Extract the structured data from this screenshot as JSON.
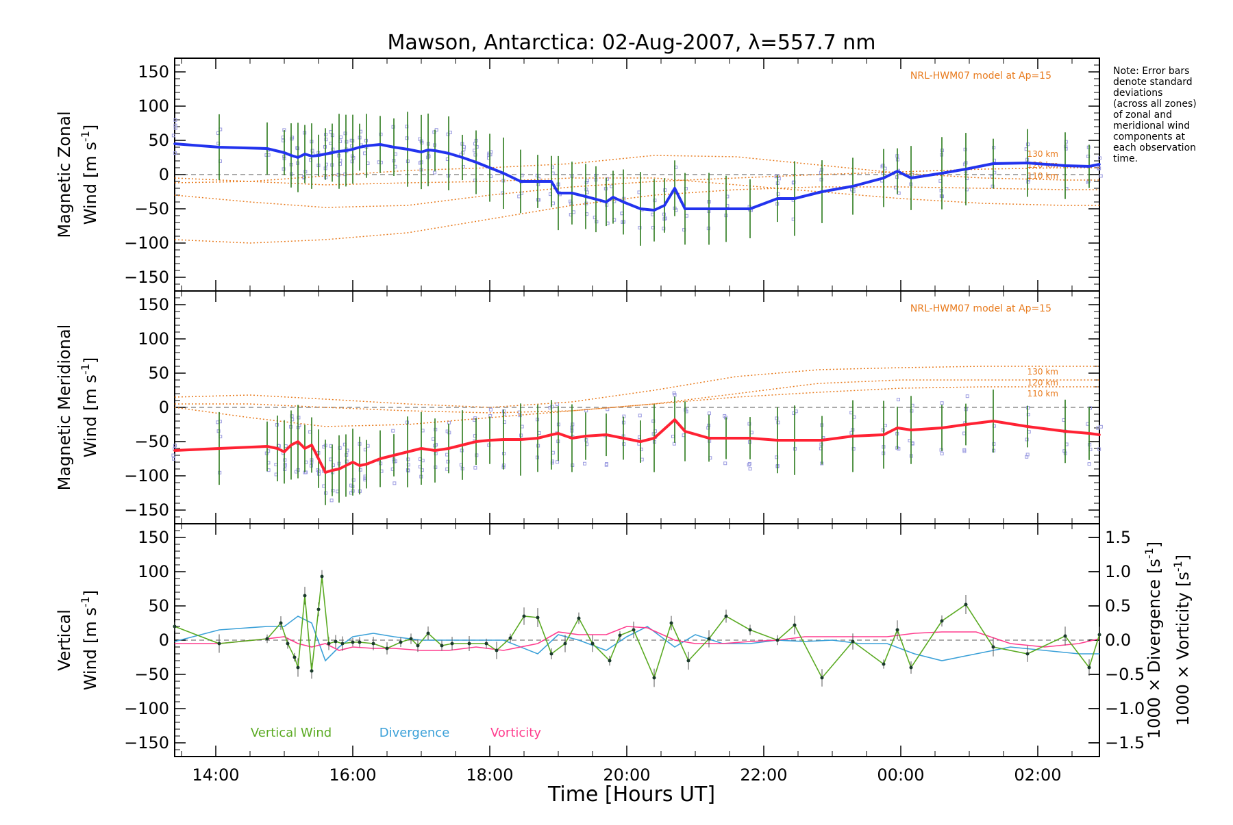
{
  "chart_data": {
    "type": "line",
    "title": "Mawson, Antarctica: 02-Aug-2007, λ=557.7 nm",
    "xlabel": "Time [Hours UT]",
    "x_tick_labels": [
      "14:00",
      "16:00",
      "18:00",
      "20:00",
      "22:00",
      "00:00",
      "02:00"
    ],
    "x_tick_hours": [
      14,
      16,
      18,
      20,
      22,
      24,
      26
    ],
    "xlim": [
      13.4,
      26.9
    ],
    "note": [
      "Note: Error bars",
      "denote standard",
      "deviations",
      "(across all zones)",
      "of zonal and",
      "meridional wind",
      "components at",
      "each observation",
      "time."
    ],
    "colors": {
      "zonal": "#2233ee",
      "meridional": "#ff2233",
      "vertical": "#5aaa22",
      "divergence": "#3aa0d8",
      "vorticity": "#ff3b8d",
      "model": "#e87a1c",
      "points": "#9a9ae0"
    },
    "panels": [
      {
        "name": "zonal",
        "ylabel_top": "Magnetic Zonal",
        "ylabel_bottom_prefix": "Wind",
        "ylabel_unit": "[m s",
        "ylabel_exp": "-1",
        "ylabel_close": "]",
        "ylim": [
          -170,
          170
        ],
        "yticks": [
          "150",
          "100",
          "50",
          "0",
          "−50",
          "−100",
          "−150"
        ],
        "ytick_values": [
          150,
          100,
          50,
          0,
          -50,
          -100,
          -150
        ],
        "model_label": "NRL-HWM07 model at Ap=15",
        "altitude_labels": [
          "130 km",
          "120 km",
          "110 km"
        ],
        "series": [
          {
            "name": "Magnetic Zonal Wind",
            "x": [
              13.4,
              14.05,
              14.75,
              15.0,
              15.1,
              15.2,
              15.3,
              15.4,
              15.5,
              15.6,
              15.7,
              15.8,
              15.9,
              16.0,
              16.1,
              16.2,
              16.4,
              16.6,
              16.8,
              17.0,
              17.1,
              17.2,
              17.4,
              17.6,
              17.8,
              18.0,
              18.2,
              18.45,
              18.7,
              18.9,
              19.0,
              19.2,
              19.4,
              19.55,
              19.7,
              19.8,
              19.95,
              20.2,
              20.4,
              20.55,
              20.7,
              20.85,
              21.2,
              21.45,
              21.8,
              22.2,
              22.45,
              22.85,
              23.3,
              23.75,
              23.95,
              24.15,
              24.6,
              24.95,
              25.35,
              25.85,
              26.4,
              26.75,
              26.9
            ],
            "y": [
              45,
              40,
              38,
              32,
              28,
              25,
              30,
              27,
              28,
              30,
              32,
              34,
              35,
              37,
              40,
              42,
              44,
              40,
              37,
              33,
              36,
              35,
              31,
              25,
              18,
              10,
              2,
              -10,
              -10,
              -10,
              -27,
              -27,
              -32,
              -36,
              -40,
              -33,
              -40,
              -50,
              -52,
              -45,
              -20,
              -50,
              -50,
              -50,
              -50,
              -35,
              -35,
              -25,
              -17,
              -5,
              5,
              -5,
              2,
              8,
              16,
              17,
              13,
              12,
              15
            ]
          }
        ]
      },
      {
        "name": "meridional",
        "ylabel_top": "Magnetic Meridional",
        "ylabel_bottom_prefix": "Wind",
        "ylabel_unit": "[m s",
        "ylabel_exp": "-1",
        "ylabel_close": "]",
        "ylim": [
          -170,
          170
        ],
        "yticks": [
          "150",
          "100",
          "50",
          "0",
          "−50",
          "−100",
          "−150"
        ],
        "ytick_values": [
          150,
          100,
          50,
          0,
          -50,
          -100,
          -150
        ],
        "model_label": "NRL-HWM07 model at Ap=15",
        "altitude_labels": [
          "130 km",
          "120 km",
          "110 km"
        ],
        "series": [
          {
            "name": "Magnetic Meridional Wind",
            "x": [
              13.4,
              14.05,
              14.75,
              14.9,
              15.0,
              15.1,
              15.2,
              15.3,
              15.4,
              15.5,
              15.6,
              15.7,
              15.8,
              15.9,
              16.0,
              16.1,
              16.2,
              16.4,
              16.6,
              16.8,
              17.0,
              17.2,
              17.4,
              17.6,
              17.8,
              18.0,
              18.2,
              18.45,
              18.7,
              18.9,
              19.0,
              19.2,
              19.4,
              19.7,
              19.95,
              20.2,
              20.4,
              20.7,
              20.85,
              21.2,
              21.45,
              21.8,
              22.2,
              22.45,
              22.85,
              23.3,
              23.75,
              23.95,
              24.15,
              24.6,
              24.95,
              25.35,
              25.85,
              26.4,
              26.75,
              26.9
            ],
            "y": [
              -63,
              -60,
              -57,
              -60,
              -65,
              -55,
              -50,
              -60,
              -55,
              -75,
              -95,
              -92,
              -90,
              -85,
              -80,
              -85,
              -83,
              -75,
              -70,
              -65,
              -60,
              -63,
              -60,
              -55,
              -50,
              -48,
              -47,
              -47,
              -45,
              -40,
              -38,
              -45,
              -42,
              -40,
              -45,
              -50,
              -45,
              -18,
              -35,
              -45,
              -45,
              -45,
              -48,
              -48,
              -48,
              -42,
              -40,
              -30,
              -33,
              -30,
              -25,
              -20,
              -28,
              -35,
              -38,
              -40
            ]
          }
        ]
      },
      {
        "name": "vertical",
        "ylabel_top": "Vertical",
        "ylabel_bottom_prefix": "Wind",
        "ylabel_unit": "[m s",
        "ylabel_exp": "-1",
        "ylabel_close": "]",
        "ylim": [
          -170,
          170
        ],
        "yticks": [
          "150",
          "100",
          "50",
          "0",
          "−50",
          "−100",
          "−150"
        ],
        "ytick_values": [
          150,
          100,
          50,
          0,
          -50,
          -100,
          -150
        ],
        "right_ylim": [
          -1.7,
          1.7
        ],
        "right_yticks": [
          "1.5",
          "1.0",
          "0.5",
          "0.0",
          "−0.5",
          "−1.0",
          "−1.5"
        ],
        "right_ytick_values": [
          1.5,
          1.0,
          0.5,
          0.0,
          -0.5,
          -1.0,
          -1.5
        ],
        "right_ylabel_div_text": "1000 × Divergence",
        "right_ylabel_vort_text": "1000 × Vorticity",
        "right_ylabel_unit": "[s",
        "right_ylabel_exp": "-1",
        "right_ylabel_close": "]",
        "legend": [
          "Vertical Wind",
          "Divergence",
          "Vorticity"
        ],
        "series": [
          {
            "name": "Vertical Wind",
            "x": [
              13.4,
              14.05,
              14.75,
              14.95,
              15.05,
              15.15,
              15.2,
              15.3,
              15.4,
              15.5,
              15.55,
              15.65,
              15.75,
              15.85,
              16.0,
              16.1,
              16.3,
              16.5,
              16.7,
              16.85,
              16.95,
              17.1,
              17.3,
              17.45,
              17.7,
              17.95,
              18.1,
              18.3,
              18.5,
              18.7,
              18.9,
              19.1,
              19.3,
              19.5,
              19.75,
              19.9,
              20.1,
              20.4,
              20.65,
              20.9,
              21.2,
              21.45,
              21.8,
              22.2,
              22.45,
              22.85,
              23.3,
              23.75,
              23.95,
              24.15,
              24.6,
              24.95,
              25.35,
              25.85,
              26.4,
              26.75,
              26.9
            ],
            "y": [
              20,
              -5,
              2,
              25,
              -5,
              -25,
              -40,
              65,
              -45,
              45,
              93,
              -5,
              -2,
              -5,
              -3,
              -3,
              -5,
              -12,
              -3,
              2,
              -8,
              10,
              -8,
              -5,
              -5,
              -5,
              -15,
              3,
              35,
              33,
              -20,
              -5,
              32,
              -5,
              -30,
              7,
              15,
              -55,
              25,
              -30,
              2,
              35,
              15,
              0,
              22,
              -55,
              -2,
              -35,
              15,
              -40,
              28,
              52,
              -10,
              -20,
              6,
              -40,
              8
            ]
          },
          {
            "name": "Divergence",
            "x": [
              13.4,
              14.05,
              14.75,
              15.0,
              15.2,
              15.4,
              15.6,
              15.8,
              16.0,
              16.3,
              16.6,
              17.0,
              17.4,
              17.8,
              18.2,
              18.7,
              19.0,
              19.3,
              19.7,
              20.0,
              20.3,
              20.7,
              21.0,
              21.4,
              21.8,
              22.2,
              22.6,
              23.0,
              23.4,
              23.8,
              24.2,
              24.6,
              25.1,
              25.6,
              26.1,
              26.6,
              26.9
            ],
            "y": [
              -0.02,
              0.15,
              0.2,
              0.2,
              0.35,
              0.25,
              -0.3,
              -0.1,
              0.05,
              0.1,
              0.05,
              0.0,
              0.0,
              0.0,
              0.0,
              -0.2,
              0.08,
              0.0,
              -0.15,
              0.05,
              0.2,
              -0.1,
              0.08,
              -0.05,
              -0.05,
              0.0,
              -0.02,
              0.0,
              -0.05,
              -0.05,
              -0.2,
              -0.3,
              -0.2,
              -0.1,
              -0.15,
              -0.2,
              -0.2
            ]
          },
          {
            "name": "Vorticity",
            "x": [
              13.4,
              14.05,
              14.75,
              15.0,
              15.2,
              15.4,
              15.6,
              15.8,
              16.0,
              16.3,
              16.6,
              17.0,
              17.4,
              17.8,
              18.2,
              18.7,
              19.0,
              19.3,
              19.7,
              20.0,
              20.3,
              20.7,
              21.0,
              21.4,
              21.8,
              22.2,
              22.6,
              23.0,
              23.4,
              23.8,
              24.2,
              24.6,
              25.1,
              25.6,
              26.1,
              26.6,
              26.9
            ],
            "y": [
              -0.05,
              -0.05,
              0.02,
              0.05,
              -0.05,
              -0.1,
              -0.05,
              -0.15,
              -0.1,
              -0.12,
              -0.12,
              -0.15,
              -0.15,
              -0.1,
              -0.15,
              -0.05,
              0.12,
              0.08,
              0.08,
              0.2,
              0.18,
              0.0,
              -0.05,
              -0.05,
              -0.02,
              0.0,
              0.05,
              0.05,
              0.05,
              0.05,
              0.1,
              0.12,
              0.12,
              -0.05,
              -0.1,
              -0.05,
              0.02
            ]
          }
        ]
      }
    ],
    "model_curves": [
      {
        "panel": "zonal",
        "x": [
          13.4,
          14.5,
          15.6,
          16.8,
          18.0,
          19.2,
          20.4,
          21.6,
          22.8,
          24.0,
          25.2,
          26.4,
          26.9
        ],
        "y": [
          -12,
          -10,
          -2,
          6,
          10,
          16,
          28,
          26,
          14,
          2,
          -5,
          -8,
          -8
        ]
      },
      {
        "panel": "zonal",
        "x": [
          13.4,
          14.5,
          15.6,
          16.8,
          18.0,
          19.2,
          20.4,
          21.6,
          22.8,
          24.0,
          25.2,
          26.4,
          26.9
        ],
        "y": [
          -30,
          -40,
          -48,
          -45,
          -30,
          -18,
          -10,
          -5,
          0,
          4,
          8,
          10,
          10
        ]
      },
      {
        "panel": "zonal",
        "x": [
          13.4,
          14.5,
          15.6,
          16.8,
          18.0,
          19.2,
          20.4,
          21.6,
          22.8,
          24.0,
          25.2,
          26.4,
          26.9
        ],
        "y": [
          -95,
          -100,
          -95,
          -85,
          -65,
          -45,
          -30,
          -22,
          -18,
          -18,
          -20,
          -22,
          -22
        ]
      },
      {
        "panel": "zonal",
        "x": [
          13.4,
          14.5,
          15.6,
          16.8,
          18.0,
          19.2,
          20.4,
          21.6,
          22.8,
          24.0,
          25.2,
          26.4,
          26.9
        ],
        "y": [
          -5,
          -10,
          -15,
          -12,
          -10,
          -5,
          -5,
          -15,
          -25,
          -35,
          -42,
          -45,
          -45
        ]
      },
      {
        "panel": "meridional",
        "x": [
          13.4,
          14.5,
          15.6,
          16.8,
          18.0,
          19.2,
          20.4,
          21.6,
          22.8,
          24.0,
          25.2,
          26.4,
          26.9
        ],
        "y": [
          15,
          18,
          12,
          5,
          0,
          8,
          25,
          45,
          55,
          58,
          60,
          60,
          60
        ]
      },
      {
        "panel": "meridional",
        "x": [
          13.4,
          14.5,
          15.6,
          16.8,
          18.0,
          19.2,
          20.4,
          21.6,
          22.8,
          24.0,
          25.2,
          26.4,
          26.9
        ],
        "y": [
          5,
          5,
          0,
          -5,
          -8,
          -5,
          5,
          20,
          35,
          40,
          40,
          40,
          40
        ]
      },
      {
        "panel": "meridional",
        "x": [
          13.4,
          14.5,
          15.6,
          16.8,
          18.0,
          19.2,
          20.4,
          21.6,
          22.8,
          24.0,
          25.2,
          26.4,
          26.9
        ],
        "y": [
          0,
          -15,
          -28,
          -25,
          -15,
          -5,
          5,
          15,
          22,
          28,
          30,
          30,
          30
        ]
      }
    ]
  }
}
